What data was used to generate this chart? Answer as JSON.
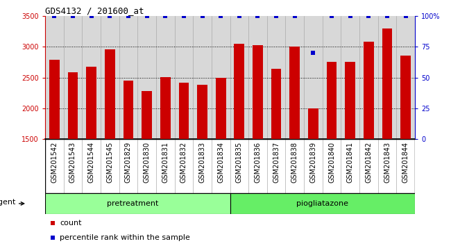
{
  "title": "GDS4132 / 201600_at",
  "samples": [
    "GSM201542",
    "GSM201543",
    "GSM201544",
    "GSM201545",
    "GSM201829",
    "GSM201830",
    "GSM201831",
    "GSM201832",
    "GSM201833",
    "GSM201834",
    "GSM201835",
    "GSM201836",
    "GSM201837",
    "GSM201838",
    "GSM201839",
    "GSM201840",
    "GSM201841",
    "GSM201842",
    "GSM201843",
    "GSM201844"
  ],
  "counts": [
    2790,
    2590,
    2670,
    2960,
    2450,
    2280,
    2510,
    2420,
    2380,
    2490,
    3050,
    3030,
    2640,
    3000,
    2000,
    2750,
    2750,
    3080,
    3300,
    2860
  ],
  "percentile_ranks": [
    100,
    100,
    100,
    100,
    100,
    100,
    100,
    100,
    100,
    100,
    100,
    100,
    100,
    100,
    70,
    100,
    100,
    100,
    100,
    100
  ],
  "group1_label": "pretreatment",
  "group1_count": 10,
  "group1_color": "#99ff99",
  "group2_label": "piogliatazone",
  "group2_count": 10,
  "group2_color": "#66ee66",
  "bar_color": "#cc0000",
  "percentile_color": "#0000cc",
  "ylim_left": [
    1500,
    3500
  ],
  "ylim_right": [
    0,
    100
  ],
  "yticks_left": [
    1500,
    2000,
    2500,
    3000,
    3500
  ],
  "yticks_right": [
    0,
    25,
    50,
    75,
    100
  ],
  "ytick_right_labels": [
    "0",
    "25",
    "50",
    "75",
    "100%"
  ],
  "gridlines": [
    2000,
    2500,
    3000
  ],
  "background_color": "#d8d8d8",
  "cell_border_color": "#aaaaaa",
  "agent_label": "agent",
  "legend_count_label": "count",
  "legend_percentile_label": "percentile rank within the sample",
  "title_fontsize": 9,
  "tick_fontsize": 7,
  "label_fontsize": 7,
  "group_fontsize": 8
}
